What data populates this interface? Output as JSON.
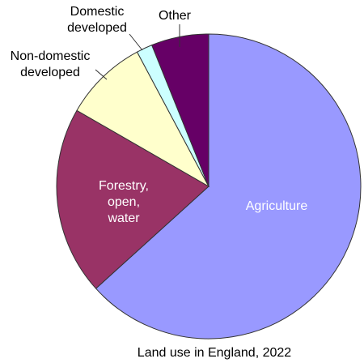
{
  "chart_data": {
    "type": "pie",
    "title": "Land use in England, 2022",
    "categories": [
      [
        "Agriculture"
      ],
      [
        "Forestry,",
        "open,",
        "water"
      ],
      [
        "Non-domestic",
        "developed"
      ],
      [
        "Domestic",
        "developed"
      ],
      [
        "Other"
      ]
    ],
    "values": [
      63.3,
      20,
      8.9,
      1.7,
      6.1
    ],
    "colors": [
      "#9999ff",
      "#993366",
      "#ffffcc",
      "#ccffff",
      "#660066"
    ]
  }
}
